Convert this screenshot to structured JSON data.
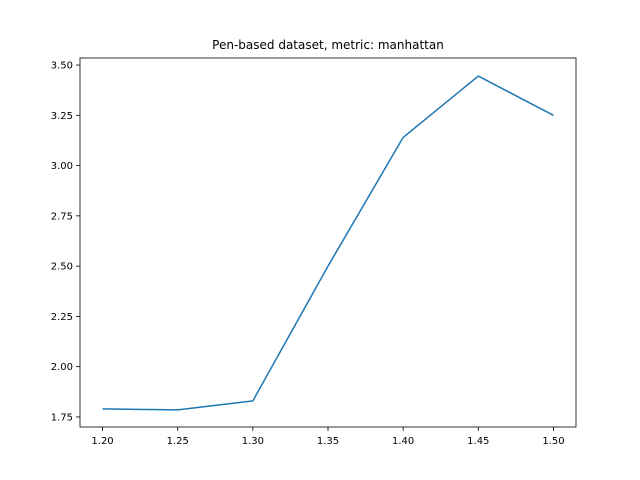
{
  "chart_data": {
    "type": "line",
    "title": "Pen-based dataset, metric: manhattan",
    "xlabel": "",
    "ylabel": "",
    "xlim": [
      1.185,
      1.515
    ],
    "ylim": [
      1.7,
      3.535
    ],
    "x_ticks": [
      1.2,
      1.25,
      1.3,
      1.35,
      1.4,
      1.45,
      1.5
    ],
    "x_tick_labels": [
      "1.20",
      "1.25",
      "1.30",
      "1.35",
      "1.40",
      "1.45",
      "1.50"
    ],
    "y_ticks": [
      1.75,
      2.0,
      2.25,
      2.5,
      2.75,
      3.0,
      3.25,
      3.5
    ],
    "y_tick_labels": [
      "1.75",
      "2.00",
      "2.25",
      "2.50",
      "2.75",
      "3.00",
      "3.25",
      "3.50"
    ],
    "grid": false,
    "series": [
      {
        "color": "#1f77b4",
        "x": [
          1.2,
          1.25,
          1.3,
          1.35,
          1.4,
          1.45,
          1.5
        ],
        "y": [
          1.79,
          1.785,
          1.83,
          2.5,
          3.14,
          3.445,
          3.25
        ]
      }
    ]
  }
}
